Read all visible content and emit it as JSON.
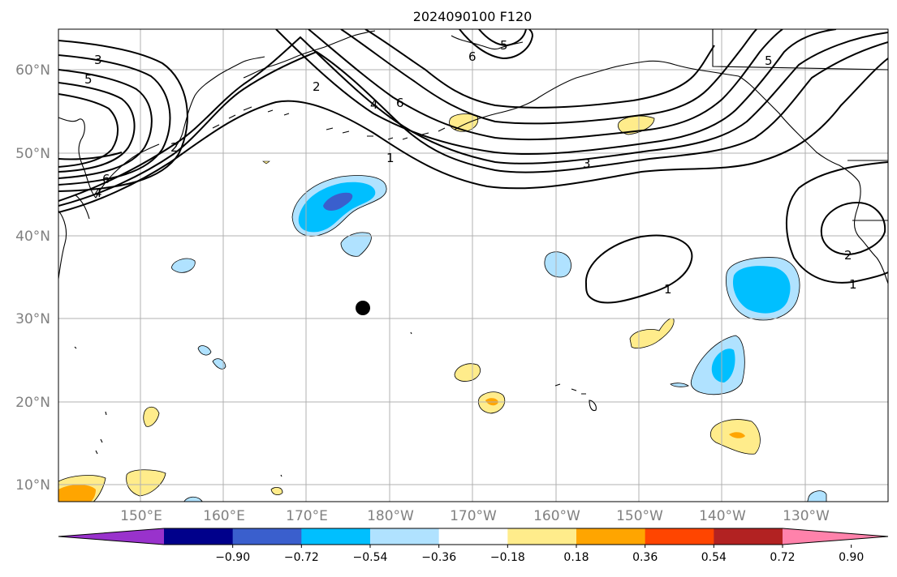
{
  "title": "2024090100 F120",
  "lat_labels": [
    "60°N",
    "50°N",
    "40°N",
    "30°N",
    "20°N",
    "10°N"
  ],
  "lon_labels": [
    "150°E",
    "160°E",
    "170°E",
    "180°W",
    "170°W",
    "160°W",
    "150°W",
    "140°W",
    "130°W"
  ],
  "colorbar": {
    "colors": [
      "#9932cc",
      "#00008b",
      "#3a5fcd",
      "#00bfff",
      "#b0e2ff",
      "#ffffff",
      "#ffec8b",
      "#ffa500",
      "#ff4500",
      "#b22222",
      "#ff82ab"
    ],
    "tick_labels": [
      "−0.90",
      "−0.72",
      "−0.54",
      "−0.36",
      "−0.18",
      "0.18",
      "0.36",
      "0.54",
      "0.72",
      "0.90"
    ]
  },
  "contour_labels": [
    "3",
    "5",
    "2",
    "6",
    "4",
    "6",
    "5",
    "2",
    "4",
    "6",
    "1",
    "3",
    "5",
    "1",
    "2",
    "1"
  ],
  "marker": {
    "name": "point-marker",
    "color": "#000000"
  },
  "legend_type": "filled-contour-anomaly"
}
